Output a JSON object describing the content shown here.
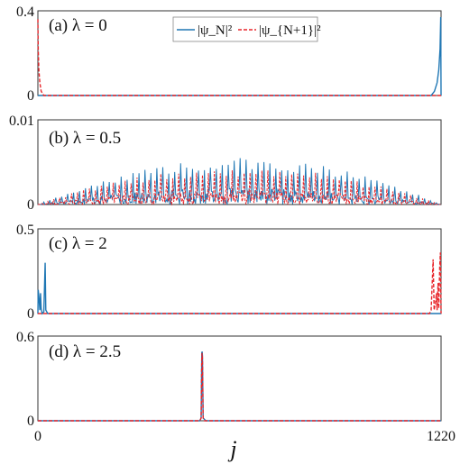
{
  "colors": {
    "psi_n": "#1f77b4",
    "psi_n1": "#e8262b"
  },
  "chart_data": {
    "type": "line",
    "xlabel": "j",
    "xlim": [
      0,
      1220
    ],
    "x_ticks": [
      "0",
      "1220"
    ],
    "legend": {
      "position": "top",
      "entries": [
        {
          "name": "|ψ_N|²",
          "style": "solid",
          "color": "#1f77b4"
        },
        {
          "name": "|ψ_{N+1}|²",
          "style": "dashed",
          "color": "#e8262b"
        }
      ]
    },
    "panels": [
      {
        "label": "(a) λ = 0",
        "ylim": [
          0,
          0.4
        ],
        "y_ticks": [
          "0.4",
          "0"
        ],
        "series": [
          {
            "name": "|ψ_N|²",
            "points": [
              [
                0,
                0
              ],
              [
                1190,
                0
              ],
              [
                1200,
                0.02
              ],
              [
                1208,
                0.06
              ],
              [
                1213,
                0.12
              ],
              [
                1217,
                0.22
              ],
              [
                1219,
                0.37
              ],
              [
                1220,
                0
              ]
            ]
          },
          {
            "name": "|ψ_{N+1}|²",
            "points": [
              [
                0,
                0.36
              ],
              [
                1,
                0.22
              ],
              [
                3,
                0.12
              ],
              [
                6,
                0.06
              ],
              [
                10,
                0.02
              ],
              [
                18,
                0
              ],
              [
                1220,
                0
              ]
            ]
          }
        ]
      },
      {
        "label": "(b) λ = 0.5",
        "ylim": [
          0,
          0.01
        ],
        "y_ticks": [
          "0.01",
          "0"
        ],
        "envelope": {
          "center": 610,
          "halfwidth": 610,
          "peak_psi_n": 0.0055,
          "peak_psi_n1": 0.0044
        }
      },
      {
        "label": "(c) λ = 2",
        "ylim": [
          0,
          0.5
        ],
        "y_ticks": [
          "0.5",
          "0"
        ],
        "series": [
          {
            "name": "|ψ_N|²",
            "points": [
              [
                0,
                0
              ],
              [
                1,
                0.14
              ],
              [
                3,
                0.1
              ],
              [
                6,
                0.02
              ],
              [
                8,
                0.12
              ],
              [
                10,
                0.03
              ],
              [
                13,
                0
              ],
              [
                18,
                0.01
              ],
              [
                22,
                0.3
              ],
              [
                24,
                0.02
              ],
              [
                30,
                0
              ],
              [
                1220,
                0
              ]
            ]
          },
          {
            "name": "|ψ_{N+1}|²",
            "points": [
              [
                0,
                0
              ],
              [
                1185,
                0
              ],
              [
                1190,
                0.02
              ],
              [
                1196,
                0.32
              ],
              [
                1199,
                0.02
              ],
              [
                1203,
                0.06
              ],
              [
                1206,
                0.12
              ],
              [
                1208,
                0.02
              ],
              [
                1211,
                0.18
              ],
              [
                1213,
                0.03
              ],
              [
                1216,
                0.28
              ],
              [
                1218,
                0.36
              ],
              [
                1220,
                0
              ]
            ]
          }
        ]
      },
      {
        "label": "(d) λ = 2.5",
        "ylim": [
          0,
          0.6
        ],
        "y_ticks": [
          "0.6",
          "0"
        ],
        "series": [
          {
            "name": "|ψ_N|²",
            "points": [
              [
                0,
                0
              ],
              [
                490,
                0
              ],
              [
                494,
                0.02
              ],
              [
                496,
                0.48
              ],
              [
                497,
                0.49
              ],
              [
                498,
                0.46
              ],
              [
                500,
                0.02
              ],
              [
                504,
                0.01
              ],
              [
                508,
                0
              ],
              [
                1220,
                0
              ]
            ]
          },
          {
            "name": "|ψ_{N+1}|²",
            "points": [
              [
                0,
                0
              ],
              [
                490,
                0
              ],
              [
                494,
                0.02
              ],
              [
                496,
                0.46
              ],
              [
                497,
                0.48
              ],
              [
                498,
                0.44
              ],
              [
                500,
                0.02
              ],
              [
                504,
                0
              ],
              [
                1220,
                0
              ]
            ]
          }
        ]
      }
    ]
  }
}
